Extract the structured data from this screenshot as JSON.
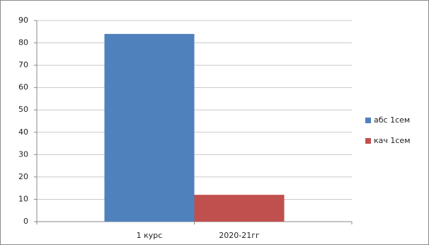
{
  "chart_data": {
    "type": "bar",
    "categories": [
      "1 курс",
      "2020-21гг"
    ],
    "series": [
      {
        "name": "абс 1сем",
        "color": "#4f81bd",
        "values": [
          84,
          null
        ]
      },
      {
        "name": "кач 1сем",
        "color": "#c0504d",
        "values": [
          null,
          12
        ]
      }
    ],
    "ylim": [
      0,
      90
    ],
    "yticks": [
      0,
      10,
      20,
      30,
      40,
      50,
      60,
      70,
      80,
      90
    ],
    "grid": true,
    "legend": "right"
  }
}
